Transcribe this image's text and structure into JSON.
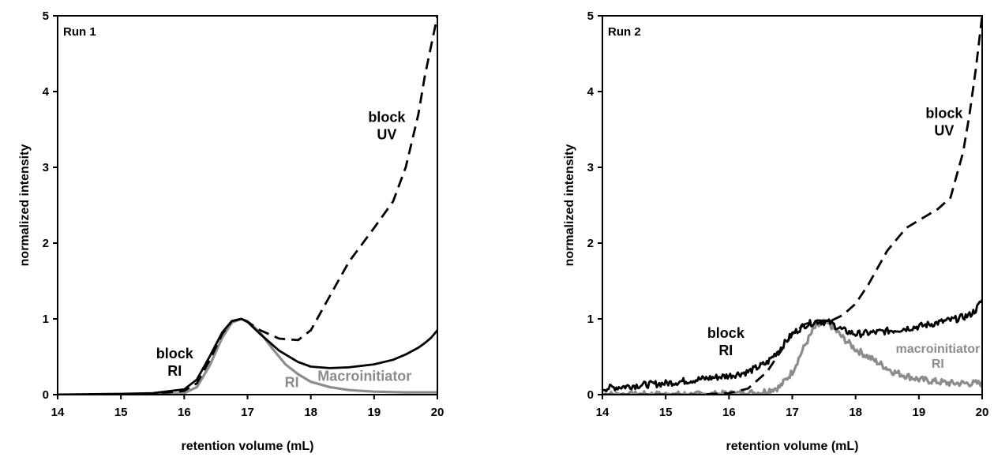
{
  "colors": {
    "black": "#000000",
    "gray": "#8c8c8c"
  },
  "chart_data": [
    {
      "type": "line",
      "panel_label": "Run 1",
      "xlabel": "retention volume (mL)",
      "ylabel": "normalized intensity",
      "xlim": [
        14,
        20
      ],
      "ylim": [
        0,
        5
      ],
      "xticks": [
        "14",
        "15",
        "16",
        "17",
        "18",
        "19",
        "20"
      ],
      "yticks": [
        "0",
        "1",
        "2",
        "3",
        "4",
        "5"
      ],
      "grid": false,
      "annotations": [
        {
          "lines": [
            "block",
            "UV"
          ],
          "x": 19.2,
          "y": 3.6,
          "color": "black",
          "size": "large"
        },
        {
          "lines": [
            "block",
            "RI"
          ],
          "x": 15.85,
          "y": 0.48,
          "color": "black",
          "size": "large"
        },
        {
          "lines": [
            "RI"
          ],
          "x": 17.7,
          "y": 0.1,
          "color": "gray",
          "size": "large"
        },
        {
          "lines": [
            "Macroinitiator"
          ],
          "x": 18.85,
          "y": 0.18,
          "color": "gray",
          "size": "large"
        }
      ],
      "series": [
        {
          "style": "dashed",
          "color": "black",
          "x": [
            14.0,
            15.0,
            15.5,
            16.0,
            16.2,
            16.4,
            16.6,
            16.75,
            16.9,
            17.0,
            17.2,
            17.5,
            17.8,
            18.0,
            18.3,
            18.6,
            19.0,
            19.3,
            19.5,
            19.7,
            19.8,
            19.9,
            20.0
          ],
          "y": [
            0.0,
            0.0,
            0.01,
            0.05,
            0.15,
            0.45,
            0.8,
            0.97,
            1.0,
            0.96,
            0.85,
            0.74,
            0.72,
            0.85,
            1.3,
            1.75,
            2.2,
            2.55,
            3.0,
            3.7,
            4.2,
            4.6,
            5.0
          ]
        },
        {
          "style": "solid",
          "color": "black",
          "x": [
            14.0,
            15.0,
            15.5,
            16.0,
            16.2,
            16.4,
            16.6,
            16.75,
            16.9,
            17.0,
            17.2,
            17.5,
            17.8,
            18.0,
            18.3,
            18.6,
            19.0,
            19.3,
            19.5,
            19.7,
            19.8,
            19.9,
            20.0
          ],
          "y": [
            0.0,
            0.01,
            0.02,
            0.07,
            0.2,
            0.5,
            0.82,
            0.97,
            1.0,
            0.96,
            0.8,
            0.58,
            0.43,
            0.37,
            0.35,
            0.36,
            0.4,
            0.46,
            0.53,
            0.62,
            0.68,
            0.75,
            0.85
          ]
        },
        {
          "style": "solid",
          "color": "gray",
          "x": [
            14.0,
            15.5,
            16.0,
            16.2,
            16.4,
            16.6,
            16.75,
            16.9,
            17.0,
            17.2,
            17.4,
            17.6,
            17.8,
            18.0,
            18.3,
            18.6,
            19.0,
            19.5,
            20.0
          ],
          "y": [
            0.0,
            0.0,
            0.02,
            0.1,
            0.38,
            0.75,
            0.95,
            1.0,
            0.97,
            0.82,
            0.6,
            0.4,
            0.27,
            0.17,
            0.1,
            0.06,
            0.04,
            0.03,
            0.03
          ]
        }
      ]
    },
    {
      "type": "line",
      "panel_label": "Run 2",
      "xlabel": "retention volume (mL)",
      "ylabel": "normalized intensity",
      "xlim": [
        14,
        20
      ],
      "ylim": [
        0,
        5
      ],
      "xticks": [
        "14",
        "15",
        "16",
        "17",
        "18",
        "19",
        "20"
      ],
      "yticks": [
        "0",
        "1",
        "2",
        "3",
        "4",
        "5"
      ],
      "grid": false,
      "annotations": [
        {
          "lines": [
            "block",
            "UV"
          ],
          "x": 19.4,
          "y": 3.65,
          "color": "black",
          "size": "large"
        },
        {
          "lines": [
            "block",
            "RI"
          ],
          "x": 15.95,
          "y": 0.75,
          "color": "black",
          "size": "large"
        },
        {
          "lines": [
            "macroinitiator",
            "RI"
          ],
          "x": 19.3,
          "y": 0.55,
          "color": "gray",
          "size": "small"
        }
      ],
      "series": [
        {
          "style": "dashed",
          "color": "black",
          "x": [
            14.0,
            15.0,
            15.5,
            16.0,
            16.3,
            16.6,
            16.8,
            17.0,
            17.2,
            17.4,
            17.6,
            17.8,
            18.0,
            18.2,
            18.5,
            18.8,
            19.0,
            19.3,
            19.5,
            19.7,
            19.8,
            19.9,
            20.0
          ],
          "y": [
            0.0,
            0.0,
            0.0,
            0.02,
            0.08,
            0.3,
            0.55,
            0.8,
            0.93,
            0.98,
            0.97,
            1.05,
            1.2,
            1.45,
            1.9,
            2.2,
            2.3,
            2.45,
            2.6,
            3.2,
            3.7,
            4.3,
            5.0
          ]
        },
        {
          "style": "solid",
          "color": "black",
          "noisy": true,
          "x": [
            14.0,
            14.5,
            15.0,
            15.5,
            16.0,
            16.3,
            16.6,
            16.8,
            17.0,
            17.2,
            17.4,
            17.6,
            17.8,
            18.0,
            18.3,
            18.6,
            19.0,
            19.3,
            19.6,
            19.8,
            19.9,
            20.0
          ],
          "y": [
            0.08,
            0.12,
            0.15,
            0.2,
            0.25,
            0.3,
            0.42,
            0.6,
            0.8,
            0.92,
            0.97,
            0.95,
            0.85,
            0.8,
            0.82,
            0.85,
            0.9,
            0.95,
            1.0,
            1.05,
            1.12,
            1.25
          ]
        },
        {
          "style": "solid",
          "color": "gray",
          "noisy": true,
          "x": [
            14.0,
            15.0,
            15.5,
            16.0,
            16.5,
            16.8,
            17.0,
            17.2,
            17.35,
            17.5,
            17.6,
            17.8,
            18.0,
            18.3,
            18.6,
            19.0,
            19.5,
            20.0
          ],
          "y": [
            0.0,
            0.0,
            0.0,
            0.01,
            0.03,
            0.1,
            0.3,
            0.65,
            0.88,
            0.95,
            0.92,
            0.75,
            0.6,
            0.45,
            0.3,
            0.2,
            0.15,
            0.15
          ]
        }
      ]
    }
  ]
}
